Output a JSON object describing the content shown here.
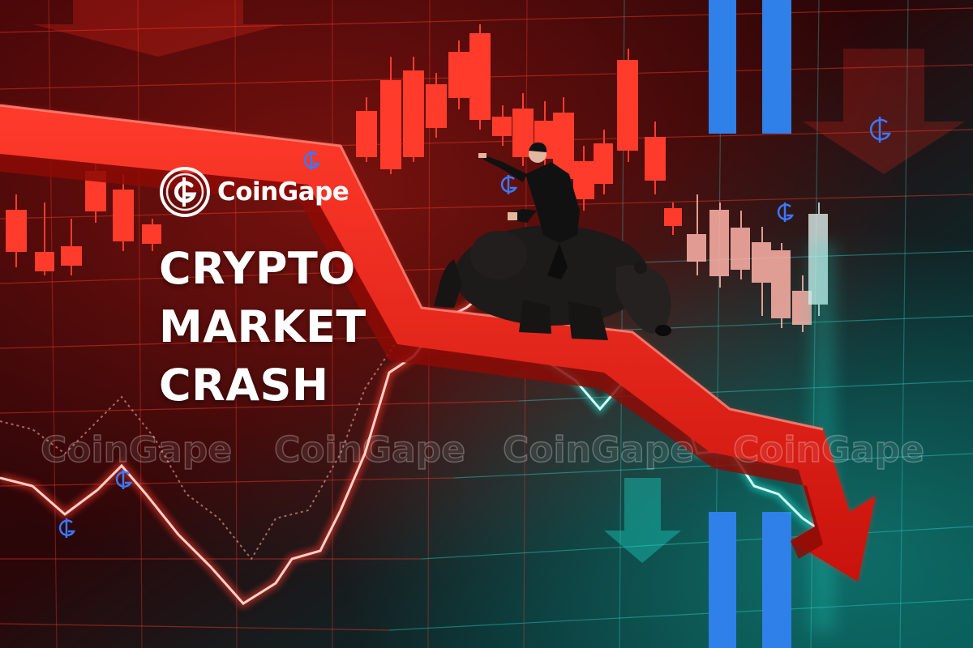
{
  "brand": {
    "name": "CoinGape",
    "logo_icon": "coingape-logo-icon"
  },
  "headline": {
    "line1": "CRYPTO",
    "line2": "MARKET",
    "line3": "CRASH"
  },
  "watermark": {
    "text": "CoinGape"
  },
  "colors": {
    "red": "#ff2a1a",
    "teal": "#12d9c8",
    "blue_bar": "#2f80e8",
    "bg_dark": "#1a0406"
  },
  "icons": [
    "coingape-small-icon",
    "down-arrow-icon",
    "bear-icon",
    "businessman-icon"
  ]
}
